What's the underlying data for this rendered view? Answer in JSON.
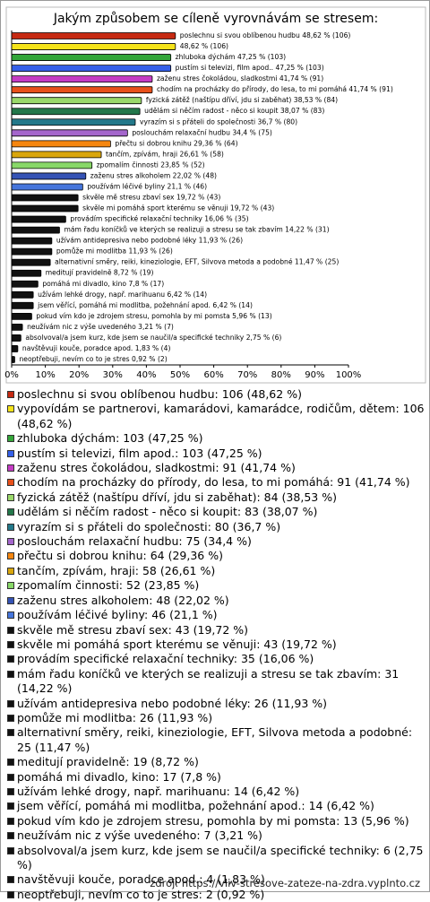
{
  "chart_data": {
    "type": "bar",
    "orientation": "horizontal",
    "title": "Jakým způsobem se cíleně vyrovnávám se stresem:",
    "values": [
      48.62,
      48.62,
      47.25,
      47.25,
      41.74,
      41.74,
      38.53,
      38.07,
      36.7,
      34.4,
      29.36,
      26.61,
      23.85,
      22.02,
      21.1,
      19.72,
      19.72,
      16.06,
      14.22,
      11.93,
      11.93,
      11.47,
      8.72,
      7.8,
      6.42,
      6.42,
      5.96,
      3.21,
      2.75,
      1.83,
      0.92
    ],
    "value_labels": [
      "poslechnu si svou oblíbenou hudbu 48,62 % (106)",
      "48,62 % (106)",
      "zhluboka dýchám 47,25 % (103)",
      "pustím si televizi, film apod.. 47,25 % (103)",
      "zaženu stres čokoládou, sladkostmi 41,74 % (91)",
      "chodím na procházky do přírody, do lesa, to mi pomáhá 41,74 % (91)",
      "fyzická zátěž (naštípu dříví, jdu si zaběhat) 38,53 % (84)",
      "udělám si něčím radost - něco si koupit 38,07 % (83)",
      "vyrazím si s přáteli do společnosti 36,7 % (80)",
      "poslouchám relaxační hudbu 34,4 % (75)",
      "přečtu si dobrou knihu 29,36 % (64)",
      "tančím, zpívám, hraji 26,61 % (58)",
      "zpomalím činnosti 23,85 % (52)",
      "zaženu stres alkoholem 22,02 % (48)",
      "používám léčivé byliny 21,1 % (46)",
      "skvěle mě stresu zbaví sex 19,72 % (43)",
      "skvěle mi pomáhá sport kterému se věnuji 19,72 % (43)",
      "provádím specifické relaxační techniky 16,06 % (35)",
      "mám řadu koníčků ve kterých se realizuji a stresu se tak zbavím 14,22 % (31)",
      "užívám antidepresiva nebo podobné léky 11,93 % (26)",
      "pomůže mi modlitba 11,93 % (26)",
      "alternativní směry, reiki, kineziologie, EFT, Silvova metoda a podobné 11,47 % (25)",
      "meditují pravidelně 8,72 % (19)",
      "pomáhá mi divadlo, kino 7,8 % (17)",
      "užívám lehké drogy, např. marihuanu 6,42 % (14)",
      "jsem věřící, pomáhá mi modlitba, požehnání apod. 6,42 % (14)",
      "pokud vím kdo je zdrojem stresu, pomohla by mi pomsta 5,96 % (13)",
      "neužívám nic z výše uvedeného 3,21 % (7)",
      "absolvoval/a jsem kurz, kde jsem se naučil/a specifické techniky 2,75 % (6)",
      "navštěvuji kouče, poradce apod. 1,83 % (4)",
      "neoptřebuji, nevím co to je stres 0,92 % (2)"
    ],
    "legend": [
      "poslechnu si svou oblíbenou hudbu: 106 (48,62 %)",
      "vypovídám se partnerovi, kamarádovi, kamarádce, rodičům, dětem: 106 (48,62 %)",
      "zhluboka dýchám: 103 (47,25 %)",
      "pustím si televizi, film apod.: 103 (47,25 %)",
      "zaženu stres čokoládou, sladkostmi: 91 (41,74 %)",
      "chodím na procházky do přírody, do lesa, to mi pomáhá: 91 (41,74 %)",
      "fyzická zátěž (naštípu dříví, jdu si zaběhat): 84 (38,53 %)",
      "udělám si něčím radost - něco si koupit: 83 (38,07 %)",
      "vyrazím si s přáteli do společnosti: 80 (36,7 %)",
      "poslouchám relaxační hudbu: 75 (34,4 %)",
      "přečtu si dobrou knihu: 64 (29,36 %)",
      "tančím, zpívám, hraji: 58 (26,61 %)",
      "zpomalím činnosti: 52 (23,85 %)",
      "zaženu stres alkoholem: 48 (22,02 %)",
      "používám léčivé byliny: 46 (21,1 %)",
      "skvěle mě stresu zbaví sex: 43 (19,72 %)",
      "skvěle mi pomáhá sport kterému se věnuji: 43 (19,72 %)",
      "provádím specifické relaxační techniky: 35 (16,06 %)",
      "mám řadu koníčků ve kterých se realizuji a stresu se tak zbavím: 31 (14,22 %)",
      "užívám antidepresiva nebo podobné léky: 26 (11,93 %)",
      "pomůže mi modlitba: 26 (11,93 %)",
      "alternativní směry, reiki, kineziologie, EFT, Silvova metoda a podobné: 25 (11,47 %)",
      "meditují pravidelně: 19 (8,72 %)",
      "pomáhá mi divadlo, kino: 17 (7,8 %)",
      "užívám lehké drogy, např. marihuanu: 14 (6,42 %)",
      "jsem věřící, pomáhá mi modlitba, požehnání apod.: 14 (6,42 %)",
      "pokud vím kdo je zdrojem stresu, pomohla by mi pomsta: 13 (5,96 %)",
      "neužívám nic z výše uvedeného: 7 (3,21 %)",
      "absolvoval/a jsem kurz, kde jsem se naučil/a specifické techniky: 6 (2,75 %)",
      "navštěvuji kouče, poradce apod.: 4 (1,83 %)",
      "neoptřebuji, nevím co to je stres: 2 (0,92 %)"
    ],
    "colors": [
      "#c62a12",
      "#f5e31a",
      "#34a63a",
      "#3560e8",
      "#c43cc4",
      "#e8501a",
      "#9ad86a",
      "#23774a",
      "#23798a",
      "#a466cc",
      "#f5860f",
      "#d9a60d",
      "#88d868",
      "#3553b5",
      "#4575db",
      "#111111",
      "#111111",
      "#111111",
      "#111111",
      "#111111",
      "#111111",
      "#111111",
      "#111111",
      "#111111",
      "#111111",
      "#111111",
      "#111111",
      "#111111",
      "#111111",
      "#111111",
      "#111111"
    ],
    "xlim": [
      0,
      100
    ],
    "xticks": [
      {
        "value": 0,
        "label": "0%"
      },
      {
        "value": 10,
        "label": "10%"
      },
      {
        "value": 20,
        "label": "20%"
      },
      {
        "value": 30,
        "label": "30%"
      },
      {
        "value": 40,
        "label": "40%"
      },
      {
        "value": 50,
        "label": "50%"
      },
      {
        "value": 60,
        "label": "60%"
      },
      {
        "value": 70,
        "label": "70%"
      },
      {
        "value": 80,
        "label": "80%"
      },
      {
        "value": 90,
        "label": "90%"
      },
      {
        "value": 100,
        "label": "100%"
      }
    ],
    "source": "zdroj: https://vliv-stresove-zateze-na-zdra.vyplnto.cz"
  }
}
